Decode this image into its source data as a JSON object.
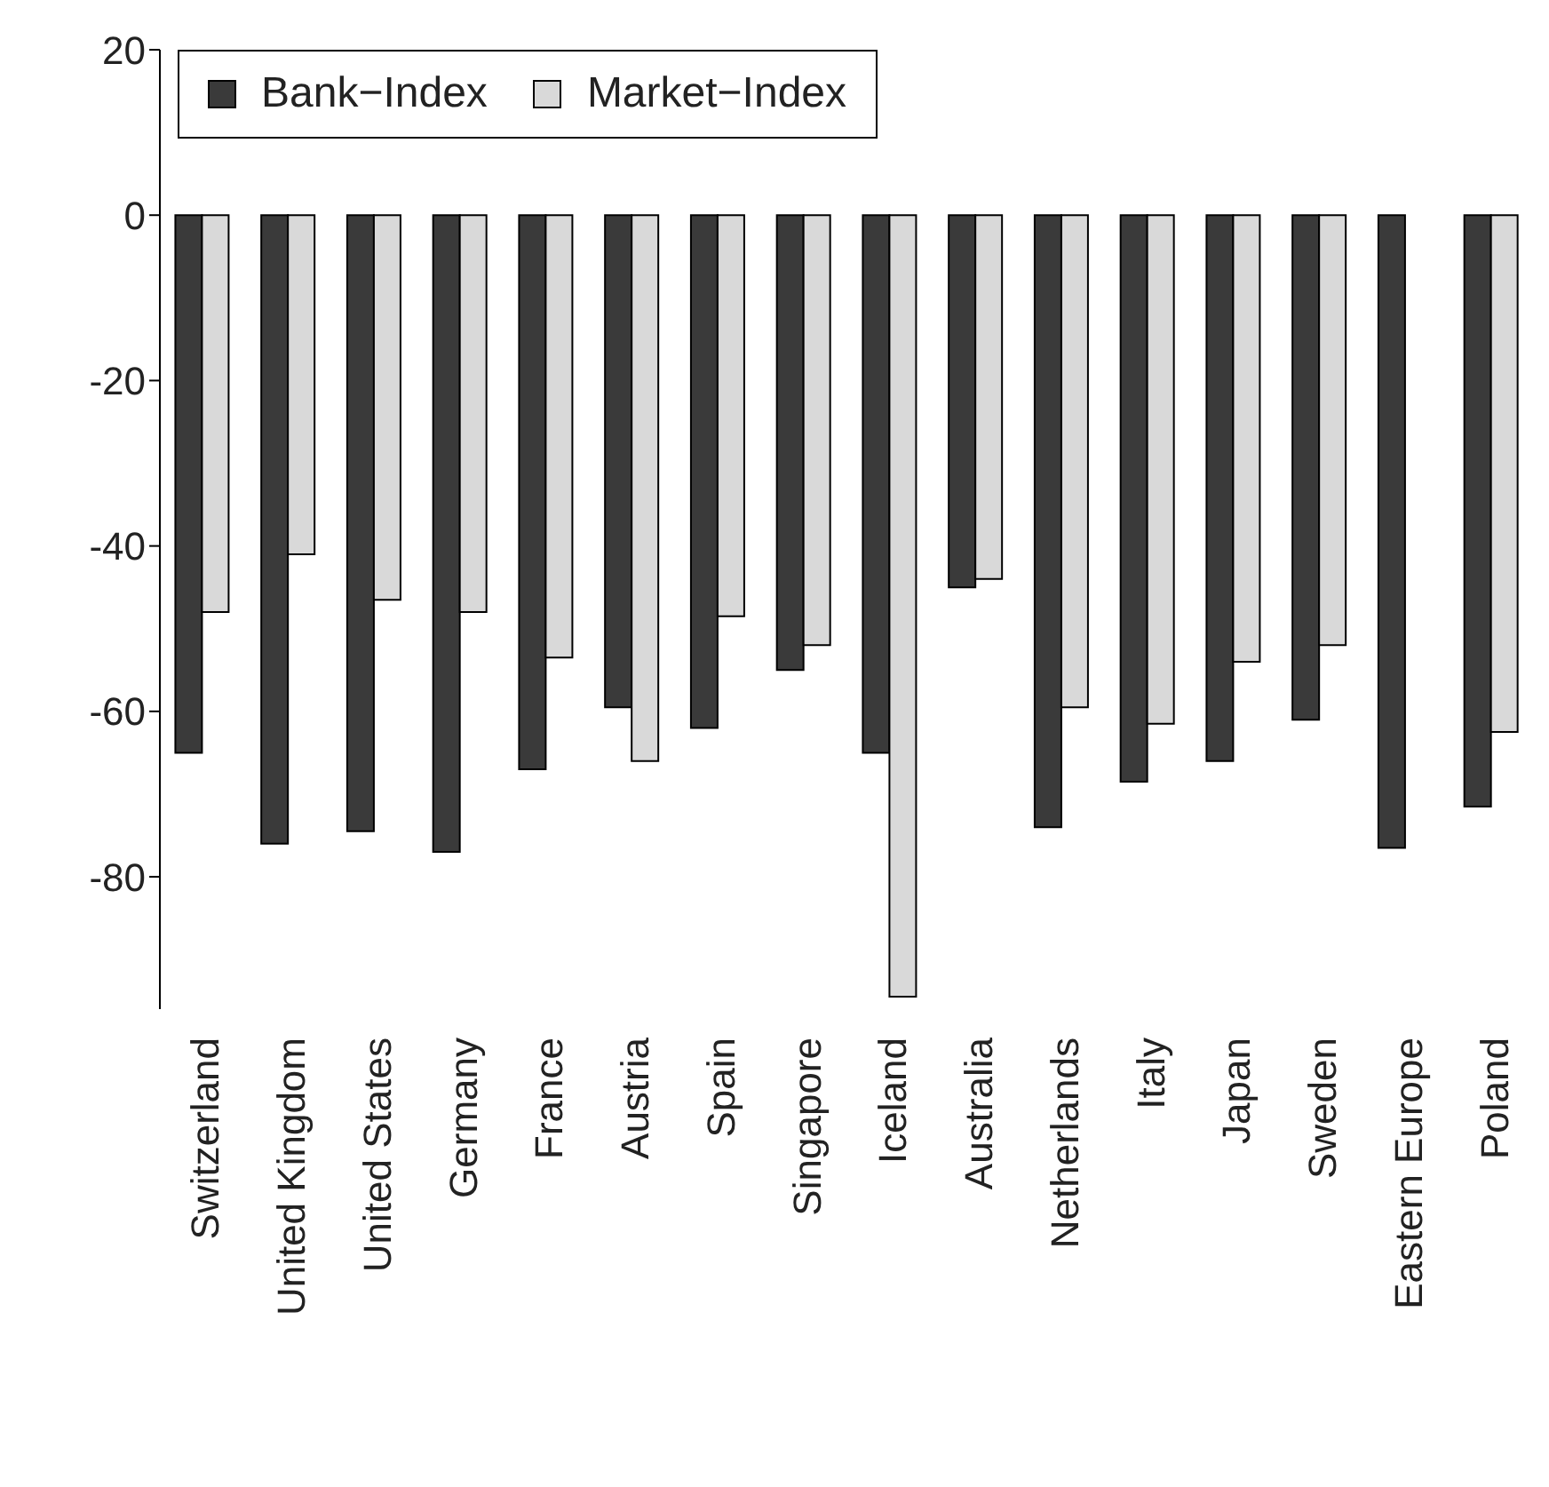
{
  "chart_data": {
    "type": "bar",
    "categories": [
      "Switzerland",
      "United Kingdom",
      "United States",
      "Germany",
      "France",
      "Austria",
      "Spain",
      "Singapore",
      "Iceland",
      "Australia",
      "Netherlands",
      "Italy",
      "Japan",
      "Sweden",
      "Eastern Europe",
      "Poland"
    ],
    "series": [
      {
        "name": "Bank−Index",
        "color": "#3a3a3a",
        "values": [
          -65,
          -76,
          -74.5,
          -77,
          -67,
          -59.5,
          -62,
          -55,
          -65,
          -45,
          -74,
          -68.5,
          -66,
          -61,
          -76.5,
          -71.5
        ]
      },
      {
        "name": "Market−Index",
        "color": "#d9d9d9",
        "values": [
          -48,
          -41,
          -46.5,
          -48,
          -53.5,
          -66,
          -48.5,
          -52,
          -94.5,
          -44,
          -59.5,
          -61.5,
          -54,
          -52,
          null,
          -62.5
        ]
      }
    ],
    "ylim": [
      -96,
      20
    ],
    "yticks": [
      20,
      0,
      -20,
      -40,
      -60,
      -80
    ],
    "legend": "top left",
    "grid": false
  }
}
